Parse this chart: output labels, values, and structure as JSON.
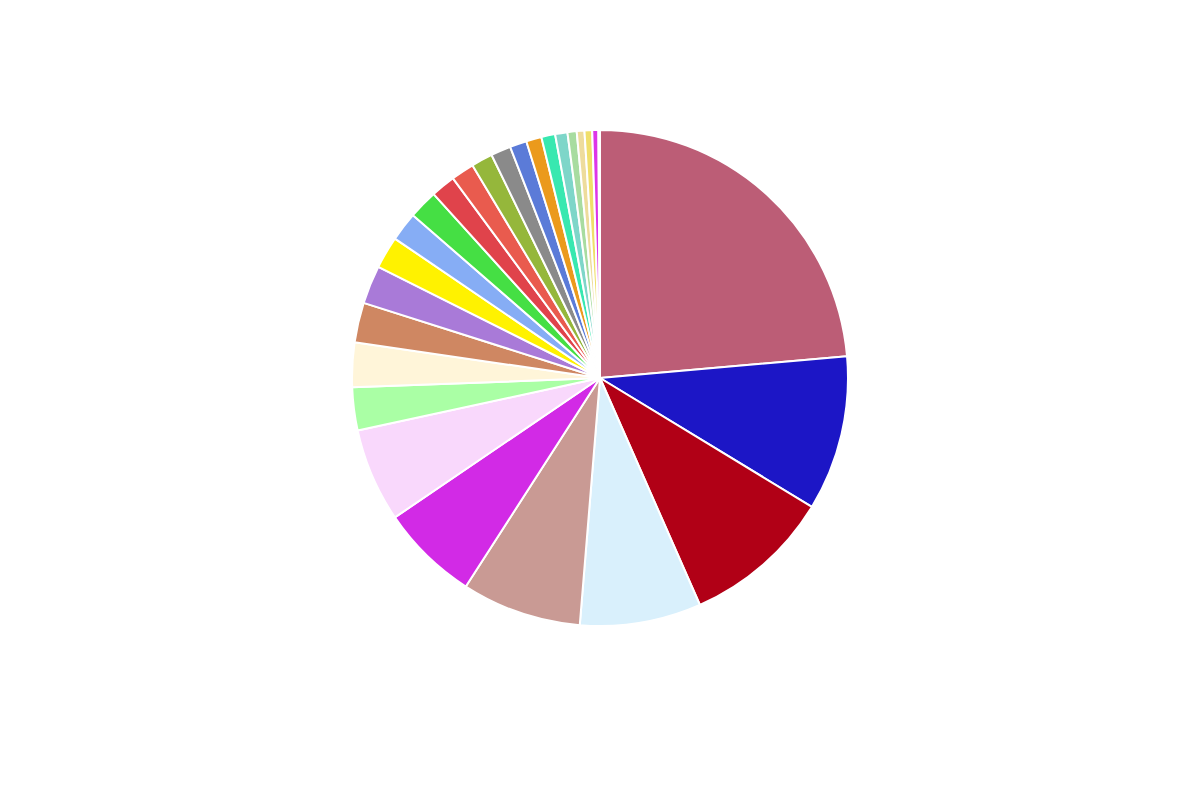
{
  "chart_data": {
    "type": "pie",
    "categories": [
      null,
      null,
      null,
      null,
      null,
      null,
      null,
      null,
      null,
      null,
      null,
      null,
      null,
      null,
      null,
      null,
      null,
      null,
      null,
      null,
      null,
      null,
      null,
      null,
      null,
      null,
      null
    ],
    "values": [
      23.6,
      10.1,
      9.7,
      7.9,
      7.8,
      6.4,
      6.1,
      2.8,
      2.9,
      2.6,
      2.5,
      2.1,
      1.9,
      1.9,
      1.6,
      1.5,
      1.4,
      1.3,
      1.1,
      1.0,
      0.9,
      0.8,
      0.6,
      0.5,
      0.5,
      0.4,
      0.1
    ],
    "colors": [
      "#bc5d76",
      "#1c16c6",
      "#b10016",
      "#d9f0fc",
      "#c99a94",
      "#d22ae6",
      "#f9d8fc",
      "#aaffa5",
      "#fff5d9",
      "#cf8762",
      "#a97ad8",
      "#fff200",
      "#86adf5",
      "#45df44",
      "#e0434b",
      "#e95b4e",
      "#95b73b",
      "#8a8a8a",
      "#5b7bd8",
      "#eb9a1c",
      "#38e8b0",
      "#7ed6c9",
      "#a8dca0",
      "#eedc9c",
      "#f0df6a",
      "#dd35e8",
      "#7d4ad8"
    ],
    "legend": false
  }
}
